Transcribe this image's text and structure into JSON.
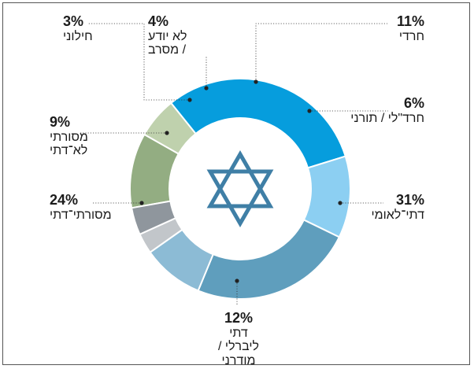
{
  "chart_data": {
    "type": "pie",
    "style": "donut",
    "slices": [
      {
        "label": "חרדי",
        "value": 11,
        "pct_text": "11%",
        "color": "#93ad82"
      },
      {
        "label": "חרד\"לי / תורני",
        "value": 6,
        "pct_text": "6%",
        "color": "#bfd1ad"
      },
      {
        "label": "דתי־לאומי",
        "value": 31,
        "pct_text": "31%",
        "color": "#069ddd"
      },
      {
        "label": "דתי ליברלי /\nמודרני",
        "value": 12,
        "pct_text": "12%",
        "color": "#8ccff2"
      },
      {
        "label": "מסורתי־דתי",
        "value": 24,
        "pct_text": "24%",
        "color": "#5f9ebd"
      },
      {
        "label": "מסורתי\nלא־דתי",
        "value": 9,
        "pct_text": "9%",
        "color": "#8cbbd5"
      },
      {
        "label": "חילוני",
        "value": 3,
        "pct_text": "3%",
        "color": "#c2c6ca"
      },
      {
        "label": "לא יודע\n/ מסרב",
        "value": 4,
        "pct_text": "4%",
        "color": "#8f969d"
      }
    ],
    "center_icon": "star-of-david-icon",
    "center_icon_color": "#3f7fa6",
    "leader_color": "#333333"
  }
}
